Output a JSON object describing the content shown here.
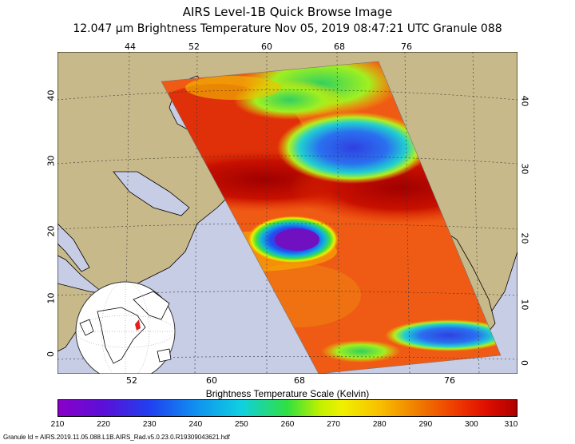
{
  "header": {
    "title": "AIRS Level-1B Quick Browse Image",
    "subtitle": "12.047 μm Brightness Temperature   Nov 05, 2019 08:47:21 UTC   Granule 088"
  },
  "map": {
    "lon_ticks_top": [
      "44",
      "52",
      "60",
      "68",
      "76"
    ],
    "lon_ticks_bottom": [
      "52",
      "60",
      "68",
      "76"
    ],
    "lat_ticks_left": [
      "40",
      "30",
      "20",
      "10",
      "0"
    ],
    "lat_ticks_right": [
      "40",
      "30",
      "20",
      "10",
      "0"
    ],
    "colors": {
      "land": "#c8b98a",
      "ocean": "#c8cde6",
      "swath_main": "#ef5a14"
    }
  },
  "scale": {
    "title": "Brightness Temperature Scale (Kelvin)",
    "ticks": [
      "210",
      "220",
      "230",
      "240",
      "250",
      "260",
      "270",
      "280",
      "290",
      "300",
      "310"
    ]
  },
  "footer": {
    "granule_id": "Granule Id = AIRS.2019.11.05.088.L1B.AIRS_Rad.v5.0.23.0.R19309043621.hdf"
  }
}
